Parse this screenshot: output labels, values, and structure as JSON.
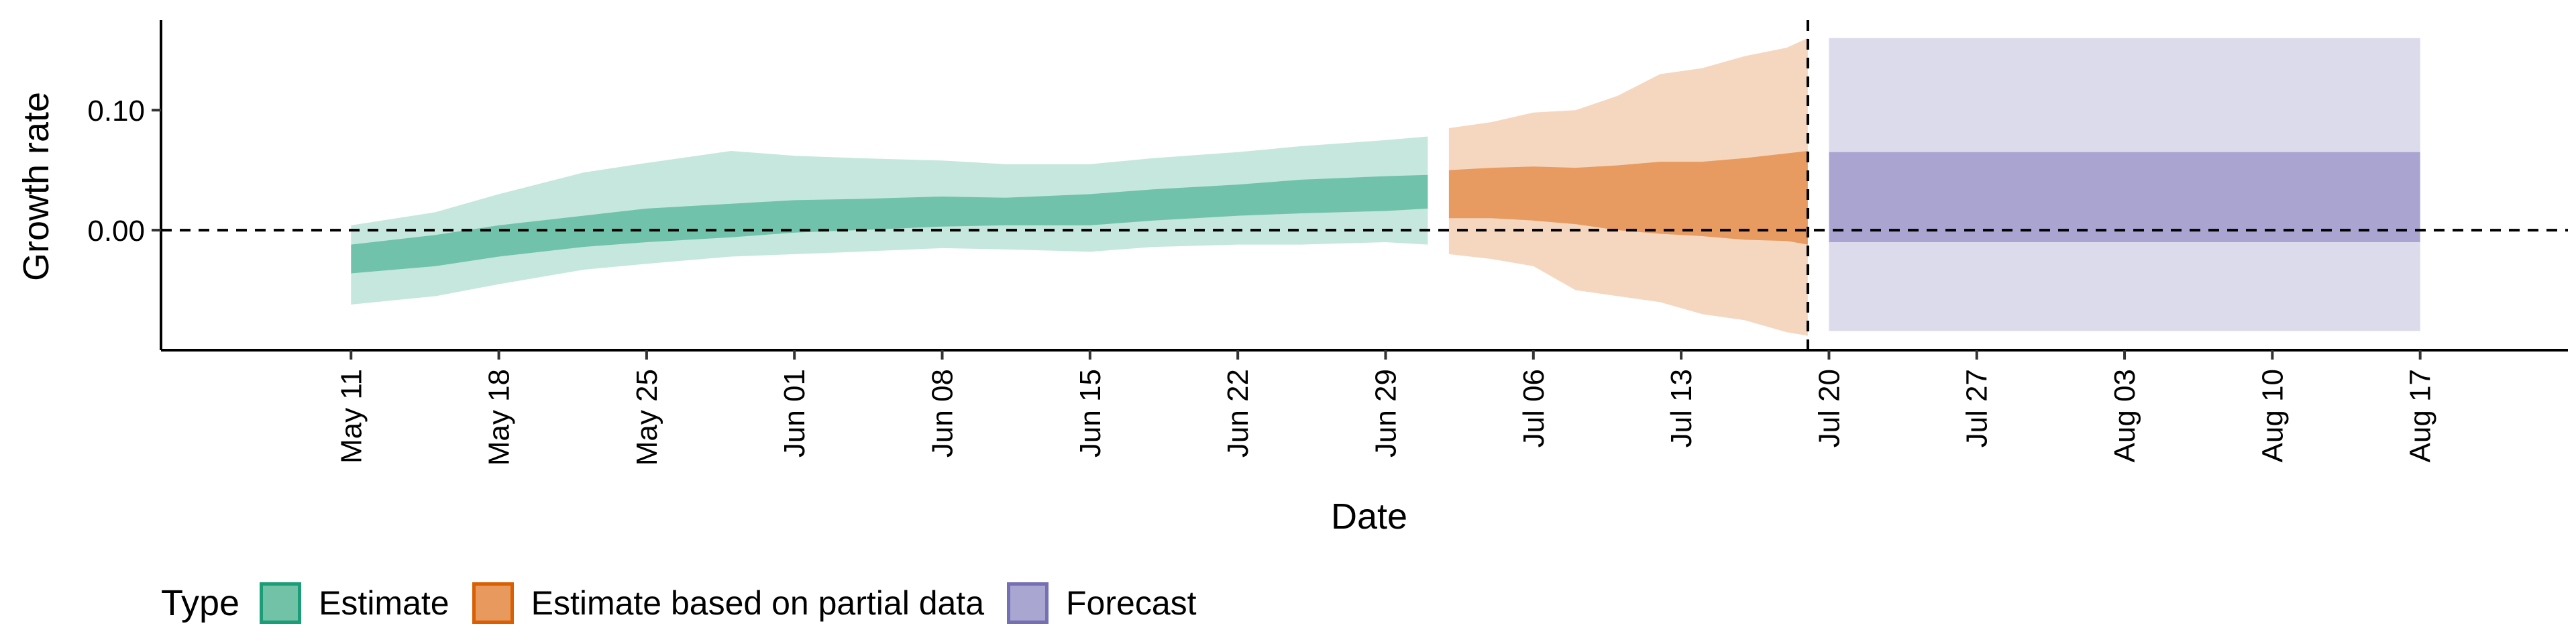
{
  "chart_data": {
    "type": "area",
    "xlabel": "Date",
    "ylabel": "Growth rate",
    "ylim": [
      -0.1,
      0.175
    ],
    "xlim": [
      "2020-05-02",
      "2020-08-24"
    ],
    "yticks": [
      0.0,
      0.1
    ],
    "ytick_labels": [
      "0.00",
      "0.10"
    ],
    "xticks": [
      "2020-05-11",
      "2020-05-18",
      "2020-05-25",
      "2020-06-01",
      "2020-06-08",
      "2020-06-15",
      "2020-06-22",
      "2020-06-29",
      "2020-07-06",
      "2020-07-13",
      "2020-07-20",
      "2020-07-27",
      "2020-08-03",
      "2020-08-10",
      "2020-08-17"
    ],
    "xtick_labels": [
      "May 11",
      "May 18",
      "May 25",
      "Jun 01",
      "Jun 08",
      "Jun 15",
      "Jun 22",
      "Jun 29",
      "Jul 06",
      "Jul 13",
      "Jul 20",
      "Jul 27",
      "Aug 03",
      "Aug 10",
      "Aug 17"
    ],
    "reference_lines": {
      "horizontal_y": 0.0,
      "vertical_x": "2020-07-19",
      "style": "dashed"
    },
    "grid": false,
    "legend_position": "bottom",
    "series": [
      {
        "name": "Estimate",
        "fill_color": "#1b9e77",
        "x": [
          "2020-05-11",
          "2020-05-15",
          "2020-05-18",
          "2020-05-22",
          "2020-05-25",
          "2020-05-29",
          "2020-06-01",
          "2020-06-04",
          "2020-06-08",
          "2020-06-11",
          "2020-06-15",
          "2020-06-18",
          "2020-06-22",
          "2020-06-25",
          "2020-06-29",
          "2020-07-01"
        ],
        "outer_lower": [
          -0.062,
          -0.055,
          -0.045,
          -0.033,
          -0.028,
          -0.022,
          -0.02,
          -0.018,
          -0.015,
          -0.016,
          -0.018,
          -0.014,
          -0.012,
          -0.012,
          -0.01,
          -0.012
        ],
        "outer_upper": [
          0.004,
          0.015,
          0.03,
          0.048,
          0.056,
          0.066,
          0.062,
          0.06,
          0.058,
          0.055,
          0.055,
          0.06,
          0.065,
          0.07,
          0.075,
          0.078
        ],
        "inner_lower": [
          -0.036,
          -0.03,
          -0.022,
          -0.014,
          -0.01,
          -0.006,
          -0.002,
          0.0,
          0.003,
          0.004,
          0.004,
          0.008,
          0.012,
          0.014,
          0.016,
          0.018
        ],
        "inner_upper": [
          -0.012,
          -0.004,
          0.004,
          0.012,
          0.018,
          0.022,
          0.025,
          0.026,
          0.028,
          0.027,
          0.03,
          0.034,
          0.038,
          0.042,
          0.045,
          0.046
        ]
      },
      {
        "name": "Estimate based on partial data",
        "fill_color": "#d95f02",
        "x": [
          "2020-07-02",
          "2020-07-04",
          "2020-07-06",
          "2020-07-08",
          "2020-07-10",
          "2020-07-12",
          "2020-07-14",
          "2020-07-16",
          "2020-07-18",
          "2020-07-19"
        ],
        "outer_lower": [
          -0.02,
          -0.024,
          -0.03,
          -0.05,
          -0.055,
          -0.06,
          -0.07,
          -0.075,
          -0.085,
          -0.088
        ],
        "outer_upper": [
          0.085,
          0.09,
          0.098,
          0.1,
          0.112,
          0.13,
          0.135,
          0.145,
          0.152,
          0.16
        ],
        "inner_lower": [
          0.01,
          0.01,
          0.008,
          0.005,
          0.0,
          -0.003,
          -0.005,
          -0.008,
          -0.009,
          -0.012
        ],
        "inner_upper": [
          0.05,
          0.052,
          0.053,
          0.052,
          0.054,
          0.057,
          0.057,
          0.06,
          0.064,
          0.066
        ]
      },
      {
        "name": "Forecast",
        "fill_color": "#7570b3",
        "x": [
          "2020-07-20",
          "2020-08-17"
        ],
        "outer_lower": [
          -0.084,
          -0.084
        ],
        "outer_upper": [
          0.16,
          0.16
        ],
        "inner_lower": [
          -0.01,
          -0.01
        ],
        "inner_upper": [
          0.065,
          0.065
        ]
      }
    ]
  },
  "legend": {
    "title": "Type",
    "items": [
      {
        "label": "Estimate",
        "fill": "#72c2a8",
        "border": "#1b9e77"
      },
      {
        "label": "Estimate based on partial data",
        "fill": "#e89a5e",
        "border": "#d95f02"
      },
      {
        "label": "Forecast",
        "fill": "#a9a6d2",
        "border": "#7570b3"
      }
    ]
  }
}
